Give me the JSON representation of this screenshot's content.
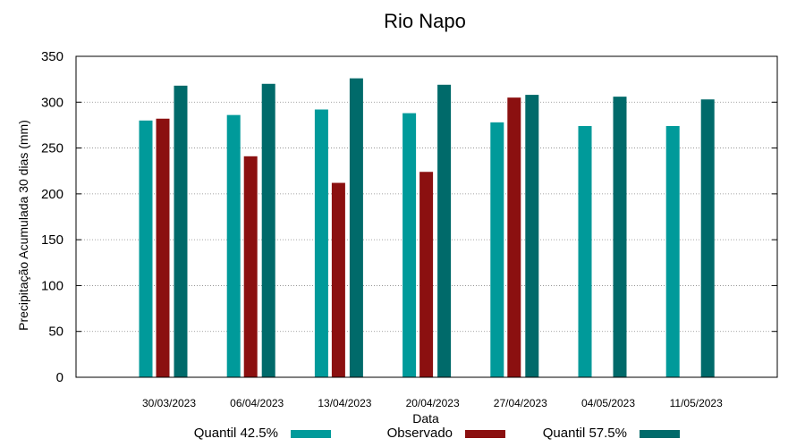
{
  "chart_data": {
    "type": "bar",
    "title": "Rio Napo",
    "xlabel": "Data",
    "ylabel": "Precipitação Acumulada 30 dias (mm)",
    "ylim": [
      0,
      350
    ],
    "yticks": [
      0,
      50,
      100,
      150,
      200,
      250,
      300,
      350
    ],
    "grid": true,
    "legend_position": "bottom",
    "categories": [
      "30/03/2023",
      "06/04/2023",
      "13/04/2023",
      "20/04/2023",
      "27/04/2023",
      "04/05/2023",
      "11/05/2023"
    ],
    "series": [
      {
        "name": "Quantil 42.5%",
        "color": "#009a9a",
        "values": [
          280,
          286,
          292,
          288,
          278,
          274,
          274
        ]
      },
      {
        "name": "Observado",
        "color": "#8b1010",
        "values": [
          282,
          241,
          212,
          224,
          305,
          null,
          null
        ]
      },
      {
        "name": "Quantil 57.5%",
        "color": "#006a6a",
        "values": [
          318,
          320,
          326,
          319,
          308,
          306,
          303
        ]
      }
    ]
  }
}
